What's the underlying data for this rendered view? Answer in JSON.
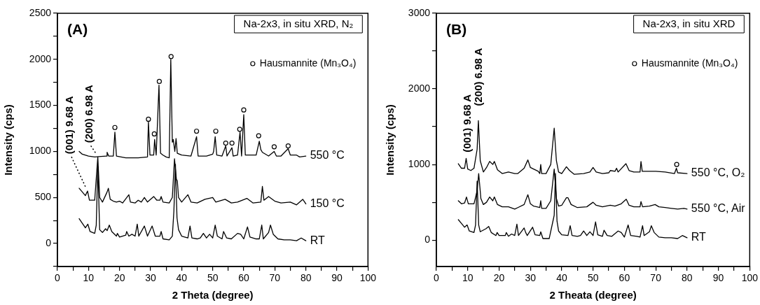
{
  "chart_data": [
    {
      "type": "line",
      "title": "Na-2x3, in situ XRD, N₂",
      "xlabel": "2 Theta (degree)",
      "ylabel": "Intensity (cps)",
      "xlim": [
        0,
        100
      ],
      "ylim": [
        -250,
        2500
      ],
      "xticks": [
        0,
        {
          "value": 5,
          "label": null
        },
        10,
        {
          "value": 15,
          "label": null
        },
        20,
        {
          "value": 25,
          "label": null
        },
        30,
        {
          "value": 35,
          "label": null
        },
        40,
        {
          "value": 45,
          "label": null
        },
        50,
        {
          "value": 55,
          "label": null
        },
        60,
        {
          "value": 65,
          "label": null
        },
        70,
        {
          "value": 75,
          "label": null
        },
        80,
        {
          "value": 85,
          "label": null
        },
        90,
        {
          "value": 95,
          "label": null
        },
        100
      ],
      "yticks": [
        {
          "value": -250,
          "label": null
        },
        0,
        {
          "value": 250,
          "label": null
        },
        500,
        {
          "value": 750,
          "label": null
        },
        1000,
        {
          "value": 1250,
          "label": null
        },
        1500,
        {
          "value": 1750,
          "label": null
        },
        2000,
        {
          "value": 2250,
          "label": null
        },
        2500
      ],
      "marker": "none",
      "legend": "top right",
      "annotations": [
        "(A)",
        {
          "text": "(001) 9.68 A",
          "x": 9.7,
          "y": 569
        },
        {
          "text": "(200) 6.98 A",
          "x": 13,
          "y": 940
        }
      ],
      "series": [
        {
          "name": "550 °C",
          "color": "#000000",
          "x": [
            7,
            8,
            10,
            12,
            14,
            15.8,
            16,
            16.5,
            18,
            18.5,
            19,
            22,
            26,
            29,
            29.3,
            29.8,
            31,
            31.3,
            31.8,
            32.7,
            33.2,
            34,
            35,
            36,
            36.5,
            37,
            37.3,
            37.8,
            38.2,
            38.6,
            40,
            43,
            44.8,
            45.3,
            48,
            50,
            50.3,
            50.8,
            51.3,
            53,
            54.2,
            54.6,
            56.2,
            56.6,
            58,
            58.8,
            59.3,
            60,
            60.5,
            62,
            64,
            65,
            65.5,
            66,
            68,
            69.8,
            70.5,
            72,
            74.3,
            75,
            77,
            78,
            80
          ],
          "values": [
            1000,
            970,
            950,
            940,
            945,
            950,
            990,
            950,
            950,
            1210,
            950,
            930,
            930,
            940,
            1320,
            960,
            960,
            1130,
            960,
            1720,
            980,
            960,
            940,
            930,
            2000,
            1100,
            1130,
            1000,
            1140,
            980,
            960,
            950,
            1160,
            950,
            950,
            970,
            1000,
            1160,
            960,
            950,
            1060,
            950,
            1040,
            950,
            960,
            1210,
            950,
            1400,
            960,
            960,
            960,
            1110,
            1020,
            990,
            950,
            1000,
            950,
            950,
            1030,
            960,
            960,
            940,
            950
          ]
        },
        {
          "name": "150 °C",
          "color": "#000000",
          "x": [
            7,
            8,
            9,
            9.7,
            10.3,
            11,
            12,
            13,
            13.6,
            14.5,
            16,
            16.4,
            17,
            18,
            19,
            20,
            21,
            23,
            23.5,
            25,
            26,
            27,
            28,
            29,
            31,
            32,
            33,
            33.4,
            34,
            36,
            37,
            37.7,
            38.3,
            38.6,
            39,
            40,
            42,
            43,
            45,
            47.5,
            50,
            51,
            54,
            56,
            58,
            61,
            63,
            65.5,
            66,
            66.5,
            68,
            70,
            72,
            75,
            77,
            79,
            80
          ],
          "values": [
            600,
            560,
            520,
            570,
            470,
            470,
            470,
            940,
            500,
            450,
            560,
            600,
            480,
            460,
            450,
            460,
            440,
            530,
            450,
            440,
            470,
            450,
            500,
            450,
            510,
            470,
            470,
            510,
            450,
            440,
            500,
            920,
            700,
            680,
            500,
            450,
            530,
            450,
            440,
            480,
            500,
            450,
            480,
            440,
            450,
            490,
            440,
            450,
            620,
            470,
            510,
            460,
            440,
            450,
            420,
            480,
            430
          ]
        },
        {
          "name": "RT",
          "color": "#000000",
          "x": [
            7,
            8,
            9,
            9.8,
            10.5,
            12,
            12.5,
            13,
            13.6,
            14.5,
            15.5,
            16,
            16.7,
            17.5,
            19,
            19.3,
            20,
            22,
            22.3,
            23,
            24,
            25,
            25.7,
            26.2,
            28,
            29,
            30.5,
            31.5,
            33,
            33.4,
            34,
            36,
            37,
            37.5,
            38,
            38.5,
            39,
            40,
            42,
            42.7,
            43.3,
            45,
            46,
            47,
            48,
            49,
            50,
            50.8,
            51.5,
            53,
            53.5,
            54.5,
            56,
            58,
            59,
            60,
            61.2,
            62,
            64,
            65,
            65.8,
            66.3,
            68,
            68.6,
            69.5,
            71,
            73,
            75,
            77,
            78.5,
            80
          ],
          "values": [
            270,
            220,
            170,
            210,
            130,
            110,
            200,
            840,
            150,
            120,
            160,
            140,
            200,
            130,
            80,
            110,
            70,
            90,
            130,
            80,
            100,
            80,
            210,
            80,
            190,
            80,
            190,
            80,
            80,
            130,
            50,
            40,
            80,
            350,
            860,
            280,
            150,
            80,
            60,
            190,
            60,
            50,
            60,
            110,
            60,
            100,
            60,
            200,
            80,
            50,
            130,
            60,
            50,
            110,
            100,
            50,
            180,
            70,
            50,
            50,
            200,
            50,
            120,
            200,
            100,
            50,
            40,
            40,
            30,
            60,
            30
          ]
        },
        {
          "type": "scatter",
          "name": "Hausmannite (Mn₃O₄)",
          "color": "#000000",
          "marker": "circle",
          "x": [
            18.5,
            29.3,
            31.2,
            32.8,
            36.6,
            44.8,
            51,
            54.2,
            56.2,
            58.7,
            60,
            64.8,
            69.8,
            74.3
          ],
          "values": [
            1260,
            1350,
            1190,
            1760,
            2030,
            1220,
            1220,
            1090,
            1090,
            1240,
            1450,
            1170,
            1050,
            1060
          ]
        }
      ]
    },
    {
      "type": "line",
      "title": "Na-2x3, in situ XRD",
      "xlabel": "2 Theata (degree)",
      "ylabel": "Intensity (cps)",
      "xlim": [
        0,
        100
      ],
      "ylim": [
        -350,
        3000
      ],
      "xticks": [
        0,
        {
          "value": 5,
          "label": null
        },
        10,
        {
          "value": 15,
          "label": null
        },
        20,
        {
          "value": 25,
          "label": null
        },
        30,
        {
          "value": 35,
          "label": null
        },
        40,
        {
          "value": 45,
          "label": null
        },
        50,
        {
          "value": 55,
          "label": null
        },
        60,
        {
          "value": 65,
          "label": null
        },
        70,
        {
          "value": 75,
          "label": null
        },
        80,
        {
          "value": 85,
          "label": null
        },
        90,
        {
          "value": 95,
          "label": null
        },
        100
      ],
      "yticks": [
        0,
        {
          "value": 500,
          "label": null
        },
        1000,
        {
          "value": 1500,
          "label": null
        },
        2000,
        {
          "value": 2500,
          "label": null
        },
        3000
      ],
      "marker": "none",
      "legend": "top right",
      "annotations": [
        "(B)",
        {
          "text": "(001) 9.68 A",
          "x": 9.5,
          "y": 1087
        },
        {
          "text": "(200) 6.98 A",
          "x": 13.4,
          "y": 1589
        }
      ],
      "series": [
        {
          "name": "550 °C, O₂",
          "color": "#000000",
          "x": [
            7,
            8,
            9,
            9.5,
            10,
            11,
            12,
            13,
            13.4,
            14,
            15,
            16,
            17,
            18,
            18.5,
            19.5,
            21,
            23,
            25,
            26,
            28,
            29.2,
            30,
            31,
            32.5,
            33,
            33.3,
            33.6,
            35,
            36.5,
            37.6,
            38.3,
            39,
            40,
            41.5,
            42.5,
            44,
            47,
            49,
            50,
            51,
            53,
            55,
            55.5,
            57,
            57.5,
            58,
            60.5,
            61.5,
            63,
            65,
            65.3,
            65.7,
            68,
            70,
            73,
            76,
            76.6,
            77,
            80
          ],
          "values": [
            1010,
            950,
            950,
            1080,
            940,
            920,
            950,
            1200,
            1580,
            1050,
            900,
            960,
            1040,
            1000,
            1040,
            930,
            880,
            900,
            880,
            880,
            950,
            1060,
            960,
            940,
            910,
            880,
            1000,
            880,
            880,
            1000,
            1480,
            1050,
            900,
            880,
            970,
            920,
            870,
            880,
            900,
            960,
            900,
            880,
            890,
            920,
            910,
            950,
            900,
            1010,
            920,
            900,
            900,
            1040,
            910,
            910,
            910,
            900,
            880,
            950,
            890,
            880
          ]
        },
        {
          "name": "550 °C, Air",
          "color": "#000000",
          "x": [
            7,
            8,
            9,
            9.6,
            10.2,
            12,
            13,
            13.5,
            14.2,
            15,
            16,
            17,
            18,
            18.5,
            19.5,
            21,
            23,
            25,
            26,
            28,
            29.2,
            30,
            31,
            33,
            33.3,
            33.6,
            35,
            36.5,
            37.6,
            38.3,
            39,
            40,
            41.5,
            42,
            43,
            45,
            48,
            50,
            51,
            53,
            55.5,
            57,
            59,
            60.6,
            61.5,
            63,
            65,
            65.3,
            65.8,
            68,
            69.8,
            71,
            73,
            75,
            77,
            79,
            80
          ],
          "values": [
            520,
            480,
            490,
            570,
            480,
            480,
            650,
            880,
            550,
            470,
            500,
            570,
            520,
            570,
            470,
            440,
            440,
            410,
            430,
            470,
            600,
            480,
            450,
            430,
            520,
            420,
            420,
            520,
            940,
            550,
            450,
            460,
            560,
            560,
            470,
            430,
            440,
            500,
            460,
            440,
            460,
            450,
            480,
            540,
            460,
            440,
            440,
            510,
            440,
            450,
            470,
            440,
            430,
            420,
            410,
            420,
            410
          ]
        },
        {
          "name": "RT",
          "color": "#000000",
          "x": [
            7,
            8,
            9,
            9.8,
            10.5,
            12,
            12.5,
            13,
            13.5,
            14,
            15.8,
            16.7,
            17.5,
            19,
            19.4,
            20,
            22,
            22.3,
            23,
            24,
            25,
            25.7,
            26.2,
            28,
            28.5,
            29,
            30.7,
            31.5,
            33,
            33.3,
            34,
            36,
            37.3,
            37.6,
            38,
            38.5,
            39,
            40,
            42,
            42.7,
            43.3,
            45,
            46,
            47,
            48,
            49,
            50,
            50.8,
            51.5,
            53,
            53.5,
            54.5,
            56,
            58,
            59,
            60,
            61.2,
            62,
            64,
            65,
            65.8,
            66.3,
            68,
            68.6,
            69.5,
            71,
            73,
            75,
            77,
            78.5,
            80
          ],
          "values": [
            270,
            220,
            170,
            200,
            120,
            100,
            200,
            780,
            200,
            110,
            150,
            180,
            100,
            60,
            100,
            60,
            60,
            100,
            50,
            80,
            60,
            210,
            60,
            160,
            100,
            60,
            170,
            70,
            60,
            110,
            20,
            20,
            270,
            330,
            880,
            250,
            120,
            70,
            60,
            190,
            60,
            50,
            60,
            120,
            60,
            110,
            60,
            240,
            70,
            50,
            130,
            60,
            50,
            120,
            100,
            40,
            200,
            60,
            50,
            40,
            190,
            60,
            110,
            190,
            100,
            40,
            30,
            30,
            20,
            60,
            30
          ]
        },
        {
          "type": "scatter",
          "name": "Hausmannite (Mn₃O₄)",
          "color": "#000000",
          "marker": "circle",
          "x": [
            76.7
          ],
          "values": [
            1000
          ]
        }
      ]
    }
  ]
}
